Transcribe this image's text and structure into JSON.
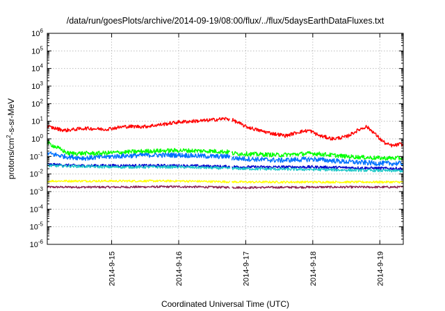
{
  "chart_data": {
    "type": "line",
    "title": "/data/run/goesPlots/archive/2014-09-19/08:00/flux/../flux/5daysEarthDataFluxes.txt",
    "xlabel": "Coordinated Universal Time (UTC)",
    "ylabel": {
      "base": "protons/cm",
      "sup": "2",
      "rest": "-s-sr-MeV"
    },
    "x_ticks": [
      "2014-9-15",
      "2014-9-16",
      "2014-9-17",
      "2014-9-18",
      "2014-9-19"
    ],
    "x_tick_days": [
      1,
      2,
      3,
      4,
      5
    ],
    "xlim_days_from_2014_9_14": [
      0.04,
      5.35
    ],
    "data_gap_days": [
      2.77,
      2.79
    ],
    "yscale": "log",
    "ylim_exponents": [
      -6,
      6
    ],
    "y_ticks": [
      {
        "base": "10",
        "exp": "-6"
      },
      {
        "base": "10",
        "exp": "-5"
      },
      {
        "base": "10",
        "exp": "-4"
      },
      {
        "base": "10",
        "exp": "-3"
      },
      {
        "base": "10",
        "exp": "-2"
      },
      {
        "base": "10",
        "exp": "-1"
      },
      {
        "base": "10",
        "exp": "0"
      },
      {
        "base": "10",
        "exp": "1"
      },
      {
        "base": "10",
        "exp": "2"
      },
      {
        "base": "10",
        "exp": "3"
      },
      {
        "base": "10",
        "exp": "4"
      },
      {
        "base": "10",
        "exp": "5"
      },
      {
        "base": "10",
        "exp": "6"
      }
    ],
    "grid": true,
    "legend": "none",
    "series": [
      {
        "color": "#ff0000",
        "points": [
          [
            0.04,
            5
          ],
          [
            0.3,
            3
          ],
          [
            0.6,
            4
          ],
          [
            0.9,
            3.5
          ],
          [
            1.2,
            5
          ],
          [
            1.5,
            5
          ],
          [
            1.8,
            7
          ],
          [
            2.0,
            9
          ],
          [
            2.2,
            10
          ],
          [
            2.4,
            11
          ],
          [
            2.6,
            13
          ],
          [
            2.7,
            14
          ],
          [
            2.8,
            12
          ],
          [
            3.0,
            5
          ],
          [
            3.2,
            3
          ],
          [
            3.4,
            2
          ],
          [
            3.6,
            1.5
          ],
          [
            3.8,
            2.5
          ],
          [
            3.95,
            3
          ],
          [
            4.1,
            1.5
          ],
          [
            4.3,
            1.0
          ],
          [
            4.5,
            1.3
          ],
          [
            4.7,
            3.5
          ],
          [
            4.8,
            5
          ],
          [
            4.9,
            2.5
          ],
          [
            5.0,
            1.0
          ],
          [
            5.1,
            0.5
          ],
          [
            5.2,
            0.4
          ],
          [
            5.3,
            0.5
          ],
          [
            5.35,
            0.45
          ]
        ],
        "noise_dex": 0.1
      },
      {
        "color": "#00ff00",
        "points": [
          [
            0.04,
            0.6
          ],
          [
            0.2,
            0.3
          ],
          [
            0.35,
            0.15
          ],
          [
            0.8,
            0.15
          ],
          [
            1.5,
            0.2
          ],
          [
            2.0,
            0.22
          ],
          [
            2.5,
            0.2
          ],
          [
            2.77,
            0.18
          ],
          [
            2.79,
            0.15
          ],
          [
            3.5,
            0.12
          ],
          [
            4.0,
            0.15
          ],
          [
            4.5,
            0.1
          ],
          [
            5.0,
            0.08
          ],
          [
            5.35,
            0.08
          ]
        ],
        "noise_dex": 0.12
      },
      {
        "color": "#0072ff",
        "points": [
          [
            0.04,
            0.15
          ],
          [
            0.3,
            0.1
          ],
          [
            0.6,
            0.08
          ],
          [
            1.0,
            0.1
          ],
          [
            1.5,
            0.12
          ],
          [
            2.0,
            0.12
          ],
          [
            2.5,
            0.1
          ],
          [
            2.77,
            0.1
          ],
          [
            2.79,
            0.08
          ],
          [
            3.5,
            0.06
          ],
          [
            4.0,
            0.07
          ],
          [
            4.5,
            0.05
          ],
          [
            5.0,
            0.04
          ],
          [
            5.35,
            0.04
          ]
        ],
        "noise_dex": 0.14
      },
      {
        "color": "#20c8c8",
        "points": [
          [
            0.04,
            0.03
          ],
          [
            1.0,
            0.025
          ],
          [
            2.0,
            0.025
          ],
          [
            3.0,
            0.02
          ],
          [
            4.0,
            0.018
          ],
          [
            5.35,
            0.015
          ]
        ],
        "noise_dex": 0.08
      },
      {
        "color": "#0000cc",
        "points": [
          [
            0.04,
            0.035
          ],
          [
            0.5,
            0.03
          ],
          [
            1.0,
            0.03
          ],
          [
            2.0,
            0.03
          ],
          [
            3.0,
            0.025
          ],
          [
            4.0,
            0.025
          ],
          [
            5.35,
            0.02
          ]
        ],
        "noise_dex": 0.08
      },
      {
        "color": "#ffff00",
        "points": [
          [
            0.04,
            0.004
          ],
          [
            2.0,
            0.004
          ],
          [
            3.0,
            0.0035
          ],
          [
            4.0,
            0.0035
          ],
          [
            5.35,
            0.0035
          ]
        ],
        "noise_dex": 0.06
      },
      {
        "color": "#8b2252",
        "points": [
          [
            0.04,
            0.0018
          ],
          [
            1.0,
            0.0018
          ],
          [
            2.0,
            0.0019
          ],
          [
            3.0,
            0.0017
          ],
          [
            4.0,
            0.0018
          ],
          [
            5.35,
            0.0018
          ]
        ],
        "noise_dex": 0.06
      }
    ]
  }
}
